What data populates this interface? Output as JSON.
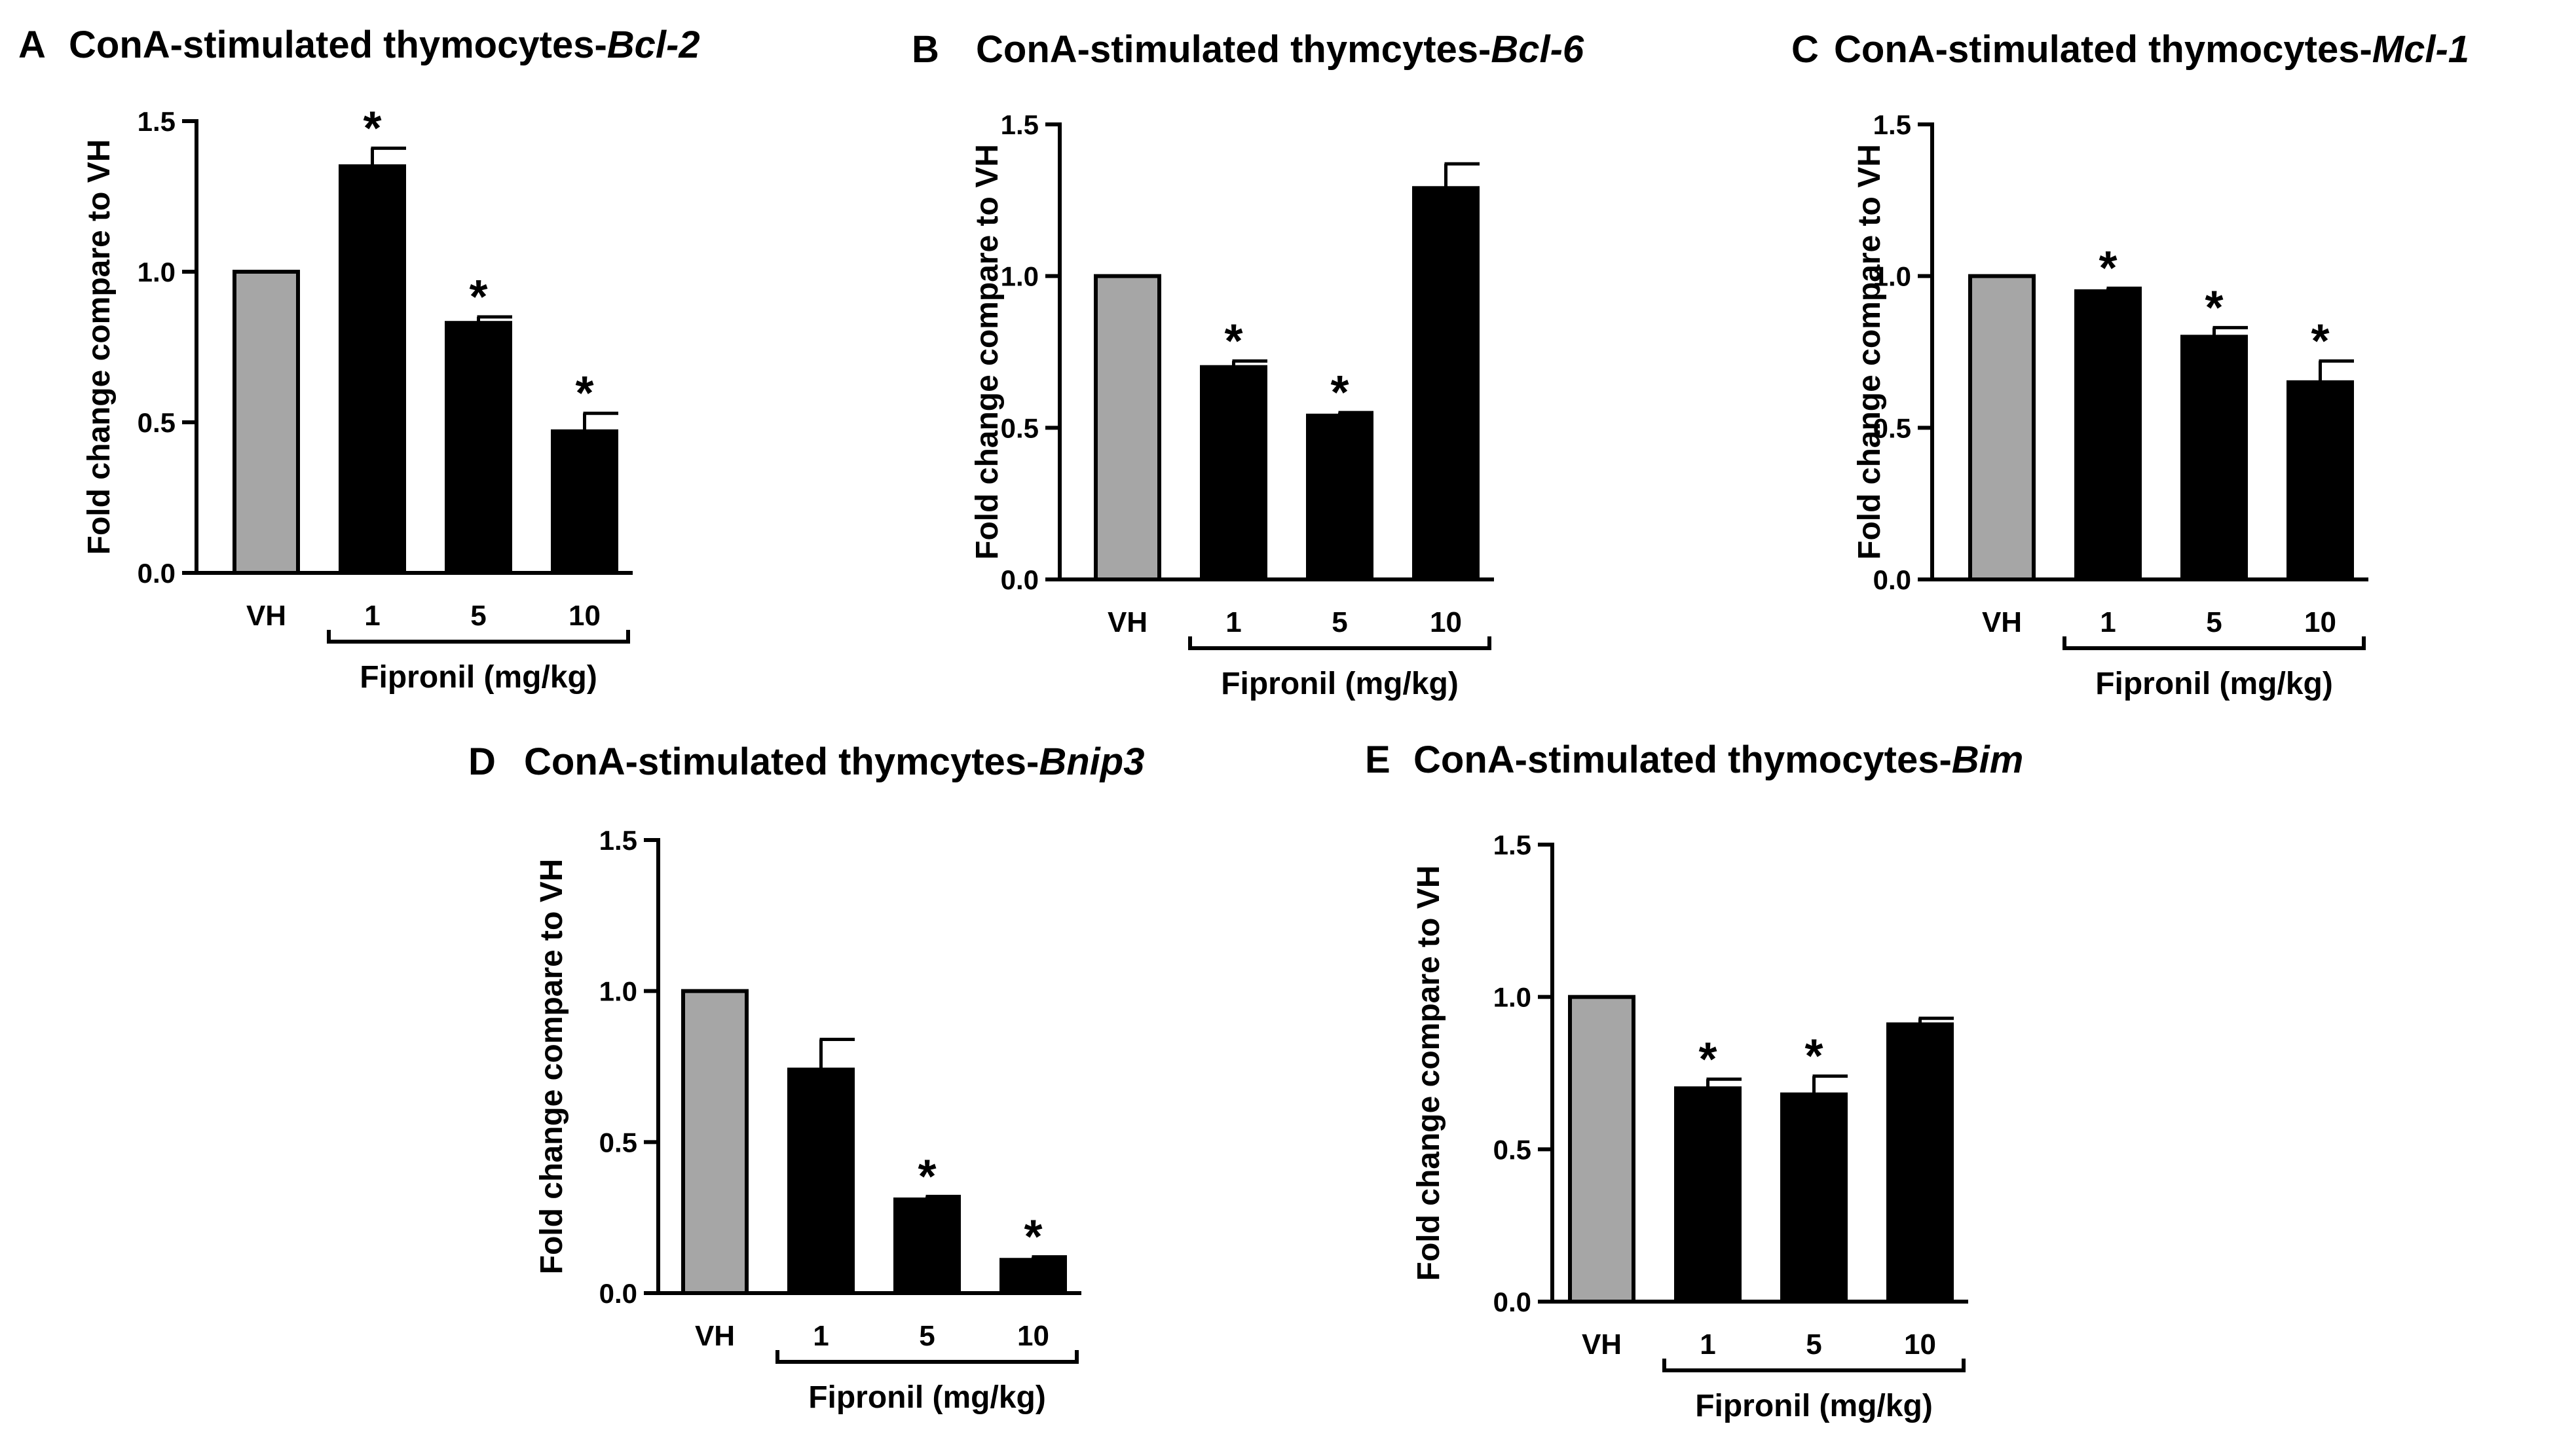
{
  "colors": {
    "vehicle_bar": "#a6a6a6",
    "treatment_bar": "#000000",
    "axis": "#000000"
  },
  "common": {
    "ylabel": "Fold change compare to VH",
    "group_label": "Fipronil (mg/kg)",
    "categories": [
      "VH",
      "1",
      "5",
      "10"
    ],
    "yticks": [
      "0.0",
      "0.5",
      "1.0",
      "1.5"
    ],
    "ylim": [
      0,
      1.5
    ]
  },
  "panels": [
    {
      "letter": "A",
      "title_prefix": "ConA-stimulated thymocytes-",
      "gene": "Bcl-2"
    },
    {
      "letter": "B",
      "title_prefix": "ConA-stimulated thymcytes-",
      "gene": "Bcl-6"
    },
    {
      "letter": "C",
      "title_prefix": "ConA-stimulated thymocytes-",
      "gene": "Mcl-1"
    },
    {
      "letter": "D",
      "title_prefix": "ConA-stimulated thymcytes-",
      "gene": "Bnip3"
    },
    {
      "letter": "E",
      "title_prefix": "ConA-stimulated thymocytes-",
      "gene": "Bim"
    }
  ],
  "chart_data": [
    {
      "type": "bar",
      "title": "ConA-stimulated thymocytes-Bcl-2",
      "xlabel": "Fipronil (mg/kg)",
      "ylabel": "Fold change compare to VH",
      "categories": [
        "VH",
        "1",
        "5",
        "10"
      ],
      "values": [
        1.0,
        1.35,
        0.83,
        0.47
      ],
      "errors": [
        0,
        0.06,
        0.02,
        0.06
      ],
      "significance": [
        "",
        "*",
        "*",
        "*"
      ],
      "ylim": [
        0,
        1.5
      ]
    },
    {
      "type": "bar",
      "title": "ConA-stimulated thymcytes-Bcl-6",
      "xlabel": "Fipronil (mg/kg)",
      "ylabel": "Fold change compare to VH",
      "categories": [
        "VH",
        "1",
        "5",
        "10"
      ],
      "values": [
        1.0,
        0.7,
        0.54,
        1.29
      ],
      "errors": [
        0,
        0.02,
        0.01,
        0.08
      ],
      "significance": [
        "",
        "*",
        "*",
        ""
      ],
      "ylim": [
        0,
        1.5
      ]
    },
    {
      "type": "bar",
      "title": "ConA-stimulated thymocytes-Mcl-1",
      "xlabel": "Fipronil (mg/kg)",
      "ylabel": "Fold change compare to VH",
      "categories": [
        "VH",
        "1",
        "5",
        "10"
      ],
      "values": [
        1.0,
        0.95,
        0.8,
        0.65
      ],
      "errors": [
        0,
        0.01,
        0.03,
        0.07
      ],
      "significance": [
        "",
        "*",
        "*",
        "*"
      ],
      "ylim": [
        0,
        1.5
      ]
    },
    {
      "type": "bar",
      "title": "ConA-stimulated thymcytes-Bnip3",
      "xlabel": "Fipronil (mg/kg)",
      "ylabel": "Fold change compare to VH",
      "categories": [
        "VH",
        "1",
        "5",
        "10"
      ],
      "values": [
        1.0,
        0.74,
        0.31,
        0.11
      ],
      "errors": [
        0,
        0.1,
        0.01,
        0.01
      ],
      "significance": [
        "",
        "",
        "*",
        "*"
      ],
      "ylim": [
        0,
        1.5
      ]
    },
    {
      "type": "bar",
      "title": "ConA-stimulated thymocytes-Bim",
      "xlabel": "Fipronil (mg/kg)",
      "ylabel": "Fold change compare to VH",
      "categories": [
        "VH",
        "1",
        "5",
        "10"
      ],
      "values": [
        1.0,
        0.7,
        0.68,
        0.91
      ],
      "errors": [
        0,
        0.03,
        0.06,
        0.02
      ],
      "significance": [
        "",
        "*",
        "*",
        ""
      ],
      "ylim": [
        0,
        1.5
      ]
    }
  ]
}
